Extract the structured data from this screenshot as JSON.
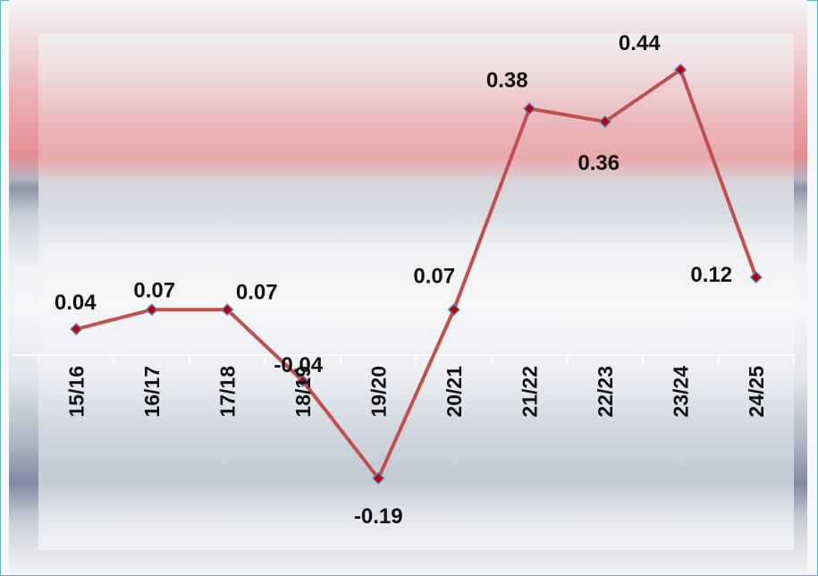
{
  "chart_data": {
    "type": "line",
    "categories": [
      "15/16",
      "16/17",
      "17/18",
      "18/19",
      "19/20",
      "20/21",
      "21/22",
      "22/23",
      "23/24",
      "24/25"
    ],
    "series": [
      {
        "values": [
          0.04,
          0.07,
          0.07,
          -0.04,
          -0.19,
          0.07,
          0.38,
          0.36,
          0.44,
          0.12
        ]
      }
    ],
    "data_labels": [
      "0.04",
      "0.07",
      "0.07",
      "-0.04",
      "-0.19",
      "0.07",
      "0.38",
      "0.36",
      "0.44",
      "0.12"
    ],
    "title": "",
    "xlabel": "",
    "ylabel": "",
    "ylim": [
      -0.25,
      0.5
    ],
    "grid": false,
    "colors": {
      "line": "#c0504d",
      "marker_fill": "#c00000",
      "marker_edge": "#4f81bd"
    }
  }
}
